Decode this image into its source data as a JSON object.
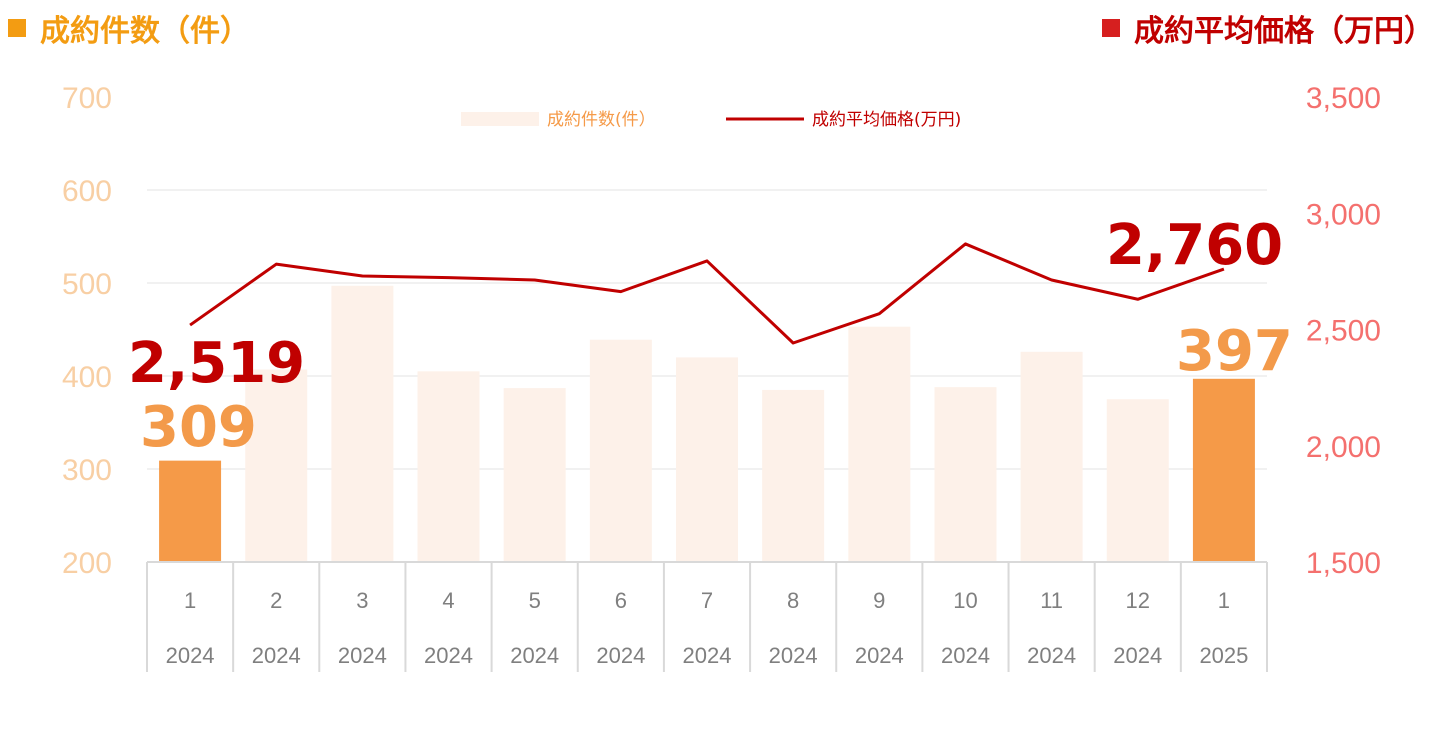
{
  "header": {
    "left_title": "成約件数（件）",
    "right_title": "成約平均価格（万円）"
  },
  "colors": {
    "bar_highlight": "#f59a48",
    "bar_normal": "#fdf1e9",
    "line": "#c00000",
    "left_axis": "#f8cfa4",
    "right_axis": "#f4706e",
    "grid": "#e3e3e3",
    "category": "#7f7f7f"
  },
  "chart_data": {
    "type": "bar",
    "categories": [
      "1",
      "2",
      "3",
      "4",
      "5",
      "6",
      "7",
      "8",
      "9",
      "10",
      "11",
      "12",
      "1"
    ],
    "years": [
      "2024",
      "2024",
      "2024",
      "2024",
      "2024",
      "2024",
      "2024",
      "2024",
      "2024",
      "2024",
      "2024",
      "2024",
      "2025"
    ],
    "series": [
      {
        "name": "成約件数(件)",
        "type": "bar",
        "axis": "left",
        "values": [
          309,
          407,
          497,
          405,
          387,
          439,
          420,
          385,
          453,
          388,
          426,
          375,
          397
        ],
        "highlight": [
          true,
          false,
          false,
          false,
          false,
          false,
          false,
          false,
          false,
          false,
          false,
          false,
          true
        ]
      },
      {
        "name": "成約平均価格(万円)",
        "type": "line",
        "axis": "right",
        "values": [
          2519,
          2781,
          2730,
          2723,
          2713,
          2663,
          2795,
          2442,
          2568,
          2868,
          2713,
          2630,
          2760
        ]
      }
    ],
    "y_left": {
      "min": 200,
      "max": 700,
      "ticks": [
        "700",
        "600",
        "500",
        "400",
        "300",
        "200"
      ]
    },
    "y_right": {
      "min": 1500,
      "max": 3500,
      "ticks": [
        "3,500",
        "3,000",
        "2,500",
        "2,000",
        "1,500"
      ]
    },
    "data_labels": {
      "first_bar": "309",
      "last_bar": "397",
      "first_line": "2,519",
      "last_line": "2,760"
    },
    "legend": {
      "bar_label": "成約件数(件）",
      "line_label": "成約平均価格(万円)",
      "position": "top"
    },
    "grid": true
  }
}
